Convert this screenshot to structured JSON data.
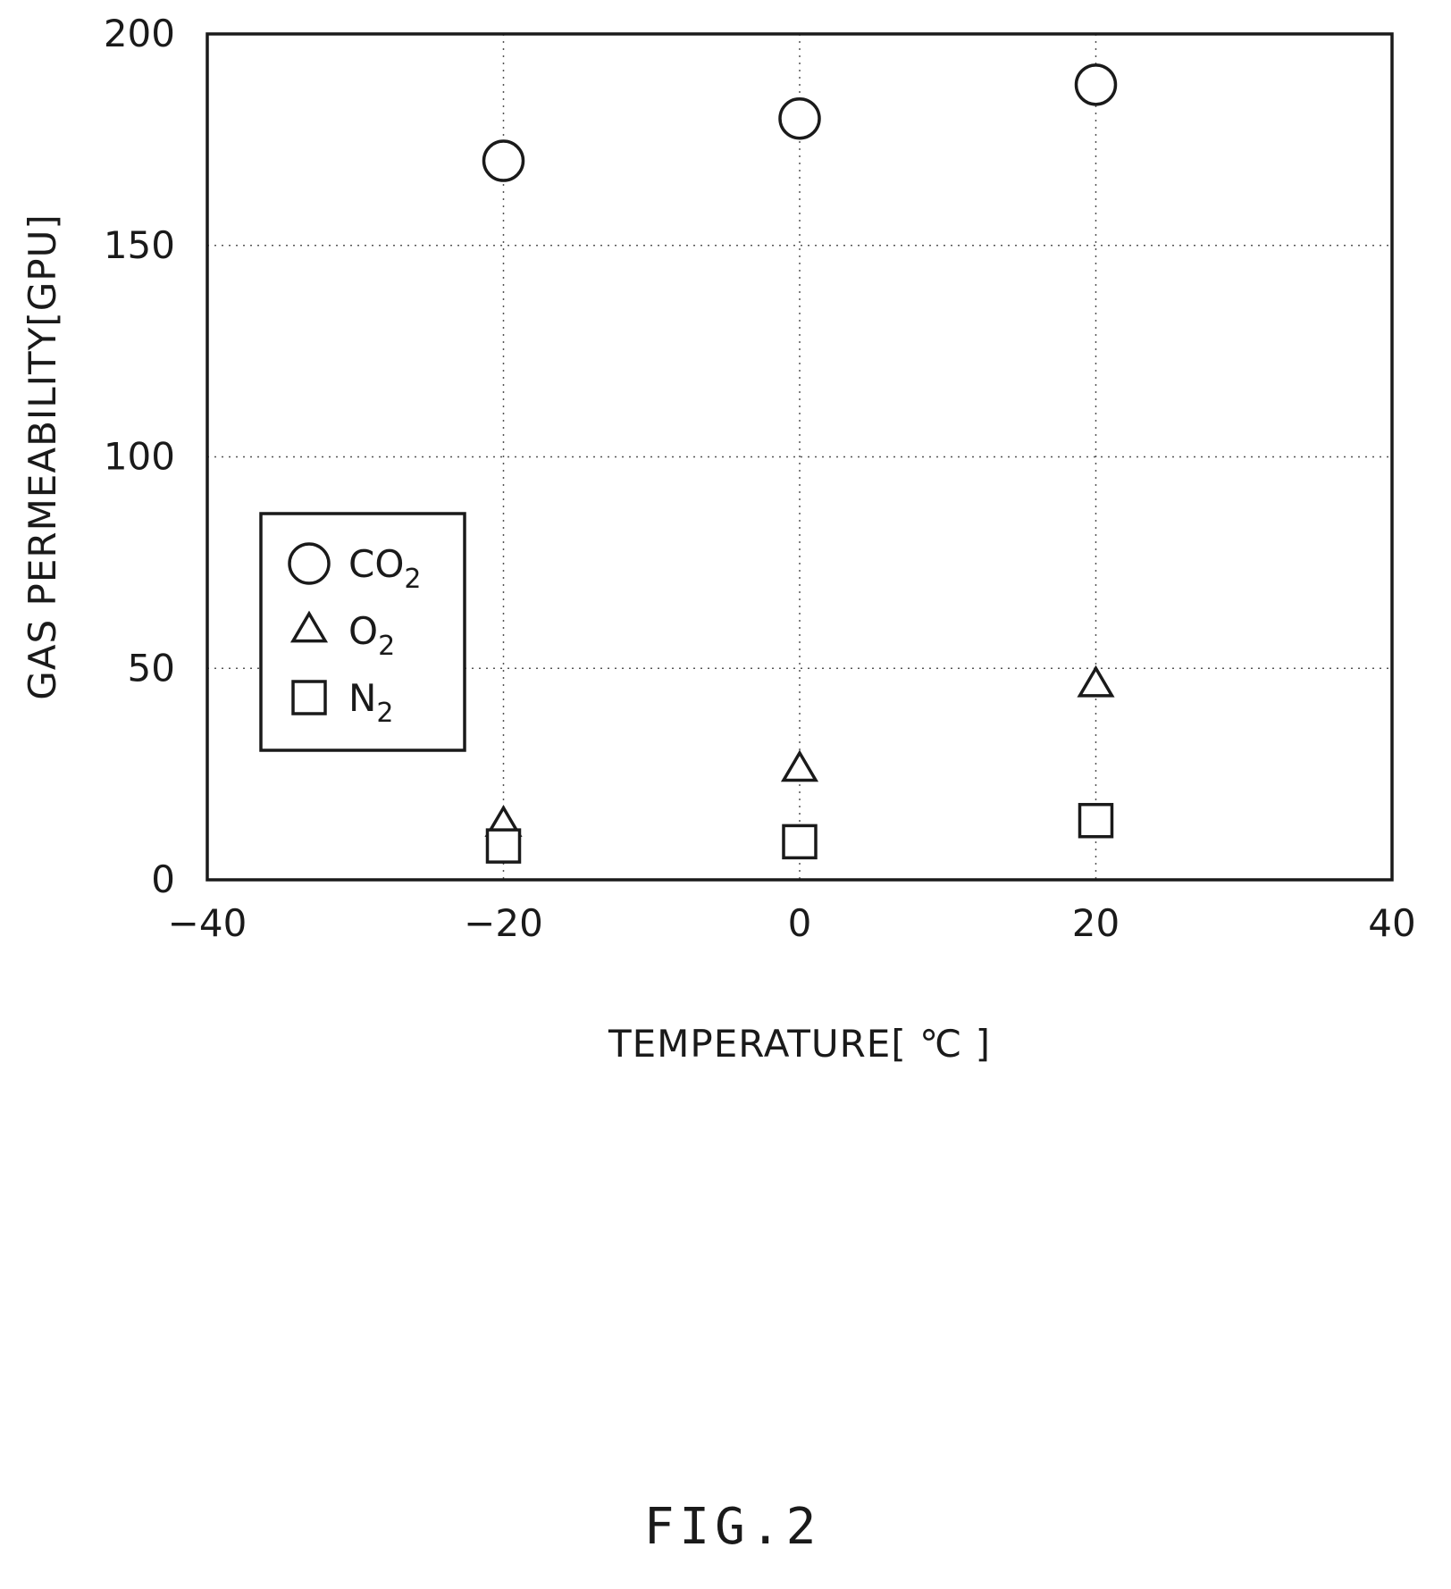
{
  "chart_data": {
    "type": "scatter",
    "title": "",
    "xlabel": "TEMPERATURE[ ℃ ]",
    "ylabel": "GAS PERMEABILITY[GPU]",
    "xlim": [
      -40,
      40
    ],
    "ylim": [
      0,
      200
    ],
    "xticks": [
      "−40",
      "−20",
      "0",
      "20",
      "40"
    ],
    "xtick_values": [
      -40,
      -20,
      0,
      20,
      40
    ],
    "yticks": [
      "0",
      "50",
      "100",
      "150",
      "200"
    ],
    "ytick_values": [
      0,
      50,
      100,
      150,
      200
    ],
    "grid": true,
    "legend_position": "left-middle",
    "series": [
      {
        "name": "CO2",
        "label_main": "CO",
        "label_sub": "2",
        "marker": "circle",
        "x": [
          -20,
          0,
          20
        ],
        "y": [
          170,
          180,
          188
        ]
      },
      {
        "name": "O2",
        "label_main": "O",
        "label_sub": "2",
        "marker": "triangle",
        "x": [
          -20,
          0,
          20
        ],
        "y": [
          13,
          26,
          46
        ]
      },
      {
        "name": "N2",
        "label_main": "N",
        "label_sub": "2",
        "marker": "square",
        "x": [
          -20,
          0,
          20
        ],
        "y": [
          8,
          9,
          14
        ]
      }
    ]
  },
  "caption": "FIG.2",
  "colors": {
    "ink": "#1a1a1a",
    "background": "#ffffff",
    "grid": "#555555"
  }
}
